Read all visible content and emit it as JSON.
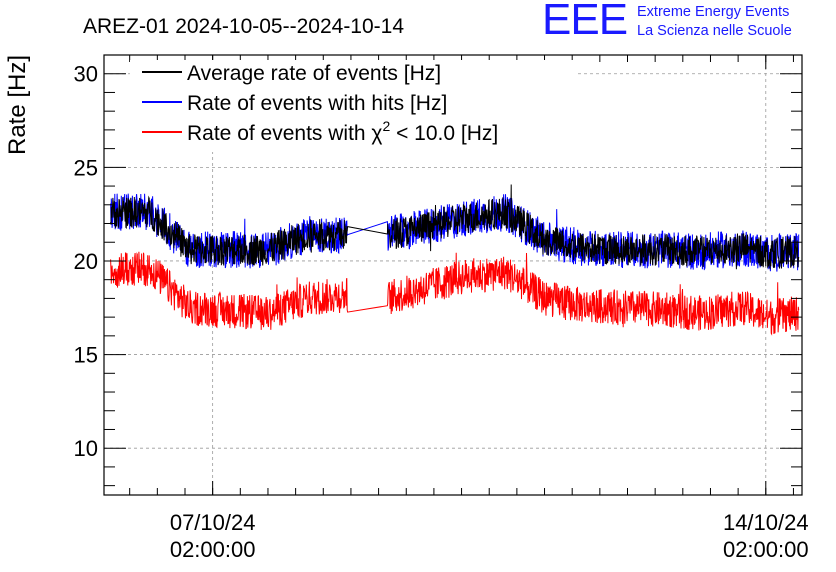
{
  "header": {
    "title": "AREZ-01 2024-10-05--2024-10-14",
    "brand_logo": "EEE",
    "brand_line1": "Extreme Energy Events",
    "brand_line2": "La Scienza nelle Scuole"
  },
  "chart_data": {
    "type": "line",
    "title": "AREZ-01 2024-10-05--2024-10-14",
    "xlabel": "",
    "ylabel": "Rate [Hz]",
    "ylim": [
      7.5,
      31
    ],
    "xlim": [
      "2024-10-05T17:00:00",
      "2024-10-14T13:00:00"
    ],
    "y_ticks": [
      10,
      15,
      20,
      25,
      30
    ],
    "x_ticks": [
      {
        "x": "2024-10-07T02:00:00",
        "date": "07/10/24",
        "time": "02:00:00"
      },
      {
        "x": "2024-10-14T02:00:00",
        "date": "14/10/24",
        "time": "02:00:00"
      }
    ],
    "grid": true,
    "legend_position": "top-left",
    "series": [
      {
        "name": "Average rate of events [Hz]",
        "color": "#000000",
        "x": [
          "2024-10-05T19:00:00",
          "2024-10-06T07:00:00",
          "2024-10-06T19:00:00",
          "2024-10-07T19:00:00",
          "2024-10-08T07:00:00",
          "2024-10-08T19:00:00",
          "2024-10-09T07:00:00",
          "2024-10-09T19:00:00",
          "2024-10-10T07:00:00",
          "2024-10-10T19:00:00",
          "2024-10-11T07:00:00",
          "2024-10-11T19:00:00",
          "2024-10-12T07:00:00",
          "2024-10-12T19:00:00",
          "2024-10-13T07:00:00",
          "2024-10-13T19:00:00",
          "2024-10-14T03:00:00",
          "2024-10-14T12:00:00"
        ],
        "y": [
          22.6,
          22.6,
          20.6,
          20.6,
          21.4,
          21.4,
          21.4,
          21.8,
          22.3,
          22.6,
          21.1,
          20.7,
          20.6,
          20.6,
          20.5,
          20.7,
          20.4,
          20.5
        ]
      },
      {
        "name": "Rate of events with hits [Hz]",
        "color": "#0000ff",
        "x": [
          "2024-10-05T19:00:00",
          "2024-10-06T07:00:00",
          "2024-10-06T19:00:00",
          "2024-10-07T19:00:00",
          "2024-10-08T07:00:00",
          "2024-10-08T19:00:00",
          "2024-10-09T07:00:00",
          "2024-10-09T19:00:00",
          "2024-10-10T07:00:00",
          "2024-10-10T19:00:00",
          "2024-10-11T07:00:00",
          "2024-10-11T19:00:00",
          "2024-10-12T07:00:00",
          "2024-10-12T19:00:00",
          "2024-10-13T07:00:00",
          "2024-10-13T19:00:00",
          "2024-10-14T03:00:00",
          "2024-10-14T12:00:00"
        ],
        "y": [
          22.6,
          22.6,
          20.6,
          20.6,
          21.4,
          21.4,
          21.4,
          21.8,
          22.3,
          22.6,
          21.1,
          20.7,
          20.6,
          20.6,
          20.5,
          20.7,
          20.4,
          20.5
        ]
      },
      {
        "name": "Rate of events with χ² < 10.0 [Hz]",
        "color": "#ff0000",
        "x": [
          "2024-10-05T19:00:00",
          "2024-10-06T07:00:00",
          "2024-10-06T19:00:00",
          "2024-10-07T19:00:00",
          "2024-10-08T07:00:00",
          "2024-10-08T19:00:00",
          "2024-10-09T07:00:00",
          "2024-10-09T19:00:00",
          "2024-10-10T07:00:00",
          "2024-10-10T19:00:00",
          "2024-10-11T07:00:00",
          "2024-10-11T19:00:00",
          "2024-10-12T07:00:00",
          "2024-10-12T19:00:00",
          "2024-10-13T07:00:00",
          "2024-10-13T19:00:00",
          "2024-10-14T03:00:00",
          "2024-10-14T12:00:00"
        ],
        "y": [
          19.5,
          19.6,
          17.5,
          17.2,
          18.0,
          18.2,
          18.0,
          18.6,
          19.2,
          19.4,
          18.0,
          17.6,
          17.5,
          17.4,
          17.2,
          17.5,
          17.0,
          17.2
        ]
      }
    ],
    "legend": [
      {
        "label": "Average rate of events [Hz]",
        "color": "#000000"
      },
      {
        "label": "Rate of events with hits [Hz]",
        "color": "#0000ff"
      },
      {
        "label_main": "Rate of events with χ",
        "label_sup": "2",
        "label_rest": " < 10.0 [Hz]",
        "color": "#ff0000"
      }
    ]
  }
}
